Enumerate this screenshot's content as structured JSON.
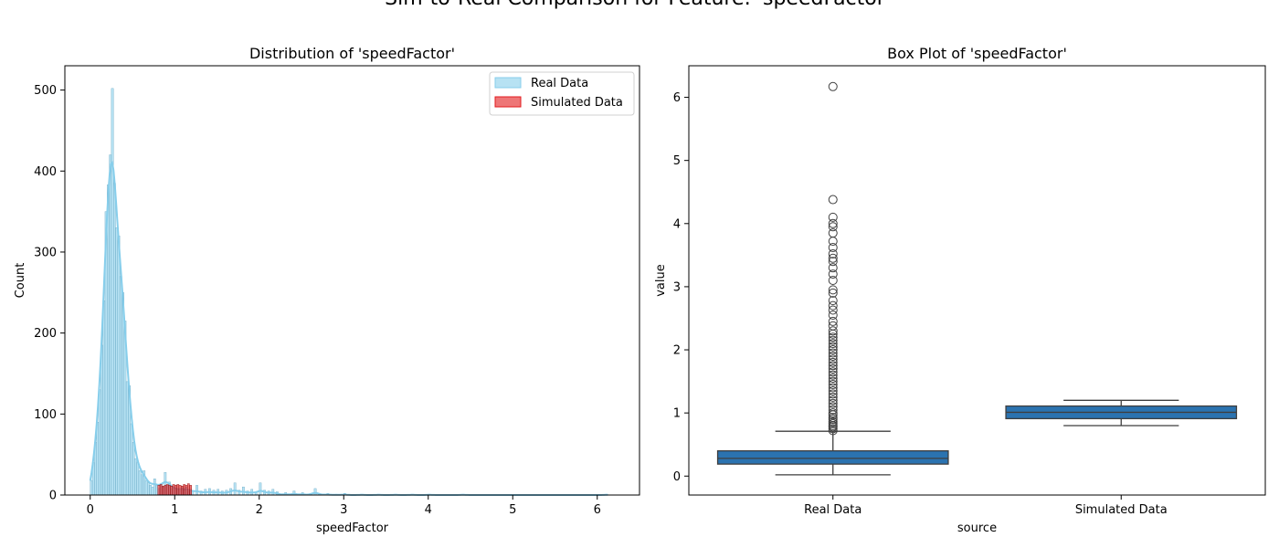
{
  "figure": {
    "suptitle": "Sim-to-Real Comparison for Feature: 'speedFactor'"
  },
  "chart_data": [
    {
      "type": "histogram",
      "title": "Distribution of 'speedFactor'",
      "xlabel": "speedFactor",
      "ylabel": "Count",
      "xlim": [
        -0.3,
        6.5
      ],
      "ylim": [
        0,
        530
      ],
      "xticks": [
        0,
        1,
        2,
        3,
        4,
        5,
        6
      ],
      "yticks": [
        0,
        100,
        200,
        300,
        400,
        500
      ],
      "grid": false,
      "legend_position": "upper-right",
      "bin_width": 0.025,
      "series": [
        {
          "name": "Real Data",
          "color": "#87ceeb",
          "kde": true,
          "bins": [
            [
              0.0,
              18
            ],
            [
              0.025,
              40
            ],
            [
              0.05,
              65
            ],
            [
              0.075,
              90
            ],
            [
              0.1,
              130
            ],
            [
              0.125,
              185
            ],
            [
              0.15,
              240
            ],
            [
              0.175,
              350
            ],
            [
              0.2,
              383
            ],
            [
              0.225,
              420
            ],
            [
              0.25,
              502
            ],
            [
              0.275,
              385
            ],
            [
              0.3,
              330
            ],
            [
              0.325,
              320
            ],
            [
              0.35,
              270
            ],
            [
              0.375,
              250
            ],
            [
              0.4,
              215
            ],
            [
              0.425,
              140
            ],
            [
              0.45,
              135
            ],
            [
              0.475,
              88
            ],
            [
              0.5,
              65
            ],
            [
              0.525,
              45
            ],
            [
              0.55,
              40
            ],
            [
              0.575,
              30
            ],
            [
              0.6,
              25
            ],
            [
              0.625,
              30
            ],
            [
              0.65,
              18
            ],
            [
              0.675,
              15
            ],
            [
              0.7,
              12
            ],
            [
              0.725,
              10
            ],
            [
              0.75,
              20
            ],
            [
              0.775,
              12
            ],
            [
              0.8,
              8
            ],
            [
              0.825,
              14
            ],
            [
              0.85,
              10
            ],
            [
              0.875,
              28
            ],
            [
              0.9,
              12
            ],
            [
              0.925,
              16
            ],
            [
              0.95,
              8
            ],
            [
              0.975,
              10
            ],
            [
              1.0,
              6
            ],
            [
              1.025,
              8
            ],
            [
              1.05,
              5
            ],
            [
              1.075,
              9
            ],
            [
              1.1,
              6
            ],
            [
              1.125,
              10
            ],
            [
              1.15,
              4
            ],
            [
              1.175,
              7
            ],
            [
              1.2,
              5
            ],
            [
              1.25,
              12
            ],
            [
              1.3,
              5
            ],
            [
              1.35,
              7
            ],
            [
              1.4,
              8
            ],
            [
              1.45,
              6
            ],
            [
              1.5,
              7
            ],
            [
              1.55,
              5
            ],
            [
              1.6,
              6
            ],
            [
              1.65,
              8
            ],
            [
              1.7,
              15
            ],
            [
              1.75,
              6
            ],
            [
              1.8,
              10
            ],
            [
              1.85,
              5
            ],
            [
              1.9,
              7
            ],
            [
              1.95,
              4
            ],
            [
              2.0,
              15
            ],
            [
              2.05,
              6
            ],
            [
              2.1,
              5
            ],
            [
              2.15,
              7
            ],
            [
              2.2,
              4
            ],
            [
              2.3,
              3
            ],
            [
              2.4,
              5
            ],
            [
              2.5,
              3
            ],
            [
              2.6,
              2
            ],
            [
              2.65,
              8
            ],
            [
              2.7,
              2
            ],
            [
              2.8,
              2
            ],
            [
              2.9,
              1
            ],
            [
              3.0,
              2
            ],
            [
              3.2,
              1
            ],
            [
              3.4,
              1
            ],
            [
              3.6,
              1
            ],
            [
              3.8,
              1
            ],
            [
              4.0,
              1
            ],
            [
              4.4,
              1
            ],
            [
              6.1,
              1
            ]
          ]
        },
        {
          "name": "Simulated Data",
          "color": "#e31a1c",
          "kde": false,
          "bins": [
            [
              0.8,
              12
            ],
            [
              0.825,
              13
            ],
            [
              0.85,
              11
            ],
            [
              0.875,
              12
            ],
            [
              0.9,
              13
            ],
            [
              0.925,
              12
            ],
            [
              0.95,
              11
            ],
            [
              0.975,
              13
            ],
            [
              1.0,
              12
            ],
            [
              1.025,
              13
            ],
            [
              1.05,
              12
            ],
            [
              1.075,
              11
            ],
            [
              1.1,
              13
            ],
            [
              1.125,
              12
            ],
            [
              1.15,
              14
            ],
            [
              1.175,
              12
            ]
          ]
        }
      ]
    },
    {
      "type": "box",
      "title": "Box Plot of 'speedFactor'",
      "xlabel": "source",
      "ylabel": "value",
      "ylim": [
        -0.3,
        6.5
      ],
      "yticks": [
        0,
        1,
        2,
        3,
        4,
        5,
        6
      ],
      "grid": false,
      "color": "#2b73b0",
      "categories": [
        "Real Data",
        "Simulated Data"
      ],
      "boxes": [
        {
          "category": "Real Data",
          "whisker_low": 0.02,
          "q1": 0.19,
          "median": 0.28,
          "q3": 0.4,
          "whisker_high": 0.71,
          "outliers": [
            0.72,
            0.75,
            0.78,
            0.8,
            0.83,
            0.86,
            0.9,
            0.93,
            0.97,
            1.0,
            1.05,
            1.1,
            1.15,
            1.2,
            1.25,
            1.3,
            1.35,
            1.4,
            1.45,
            1.5,
            1.55,
            1.6,
            1.65,
            1.7,
            1.75,
            1.8,
            1.85,
            1.9,
            1.95,
            2.0,
            2.05,
            2.1,
            2.15,
            2.2,
            2.25,
            2.3,
            2.38,
            2.45,
            2.55,
            2.63,
            2.7,
            2.78,
            2.9,
            2.95,
            3.1,
            3.2,
            3.3,
            3.4,
            3.45,
            3.52,
            3.62,
            3.72,
            3.85,
            3.95,
            4.0,
            4.1,
            4.38,
            6.17
          ]
        },
        {
          "category": "Simulated Data",
          "whisker_low": 0.8,
          "q1": 0.91,
          "median": 1.01,
          "q3": 1.11,
          "whisker_high": 1.2,
          "outliers": []
        }
      ]
    }
  ]
}
